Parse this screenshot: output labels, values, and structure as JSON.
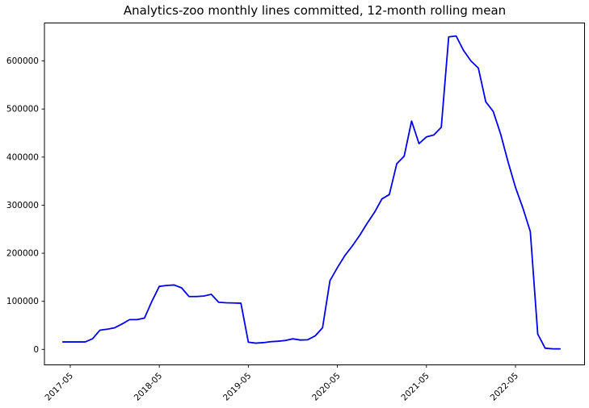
{
  "chart_data": {
    "type": "line",
    "title": "Analytics-zoo monthly lines committed, 12-month rolling mean",
    "xlabel": "",
    "ylabel": "",
    "grid": false,
    "legend": "none",
    "line_color": "#0000ee",
    "axis_color": "#000000",
    "background_color": "#ffffff",
    "x_unit": "month (YYYY-MM), axis scaled in months since 2017-05",
    "xlim": [
      -3.48,
      69.31
    ],
    "ylim": [
      -32200,
      679000
    ],
    "x_tick_labels": [
      "2017-05",
      "2018-05",
      "2019-05",
      "2020-05",
      "2021-05",
      "2022-05"
    ],
    "y_tick_values": [
      0,
      100000,
      200000,
      300000,
      400000,
      500000,
      600000
    ],
    "series": [
      {
        "name": "12-month rolling mean of monthly lines committed",
        "x": [
          "2017-04",
          "2017-05",
          "2017-06",
          "2017-07",
          "2017-08",
          "2017-09",
          "2017-10",
          "2017-11",
          "2017-12",
          "2018-01",
          "2018-02",
          "2018-03",
          "2018-04",
          "2018-05",
          "2018-06",
          "2018-07",
          "2018-08",
          "2018-09",
          "2018-10",
          "2018-11",
          "2018-12",
          "2019-01",
          "2019-02",
          "2019-03",
          "2019-04",
          "2019-05",
          "2019-06",
          "2019-07",
          "2019-08",
          "2019-09",
          "2019-10",
          "2019-11",
          "2019-12",
          "2020-01",
          "2020-02",
          "2020-03",
          "2020-04",
          "2020-05",
          "2020-06",
          "2020-07",
          "2020-08",
          "2020-09",
          "2020-10",
          "2020-11",
          "2020-12",
          "2021-01",
          "2021-02",
          "2021-03",
          "2021-04",
          "2021-05",
          "2021-06",
          "2021-07",
          "2021-08",
          "2021-09",
          "2021-10",
          "2021-11",
          "2021-12",
          "2022-01",
          "2022-02",
          "2022-03",
          "2022-04",
          "2022-05",
          "2022-06",
          "2022-07",
          "2022-08",
          "2022-09",
          "2022-10",
          "2022-11"
        ],
        "values": [
          15500,
          15500,
          15500,
          15500,
          22000,
          40000,
          42000,
          45000,
          53000,
          62000,
          62000,
          65000,
          100000,
          131000,
          133000,
          134000,
          128000,
          110000,
          110000,
          111000,
          114500,
          98000,
          97000,
          96500,
          96000,
          15000,
          13000,
          14000,
          16000,
          17000,
          18500,
          22000,
          19500,
          20000,
          28000,
          45000,
          143000,
          170000,
          195000,
          215000,
          237000,
          262000,
          285000,
          313000,
          322000,
          386000,
          402000,
          475000,
          428000,
          442000,
          446000,
          462000,
          650000,
          652000,
          622000,
          600000,
          585000,
          515000,
          495000,
          448000,
          390000,
          337000,
          294000,
          245000,
          32000,
          2500,
          1200,
          1000
        ]
      }
    ]
  }
}
